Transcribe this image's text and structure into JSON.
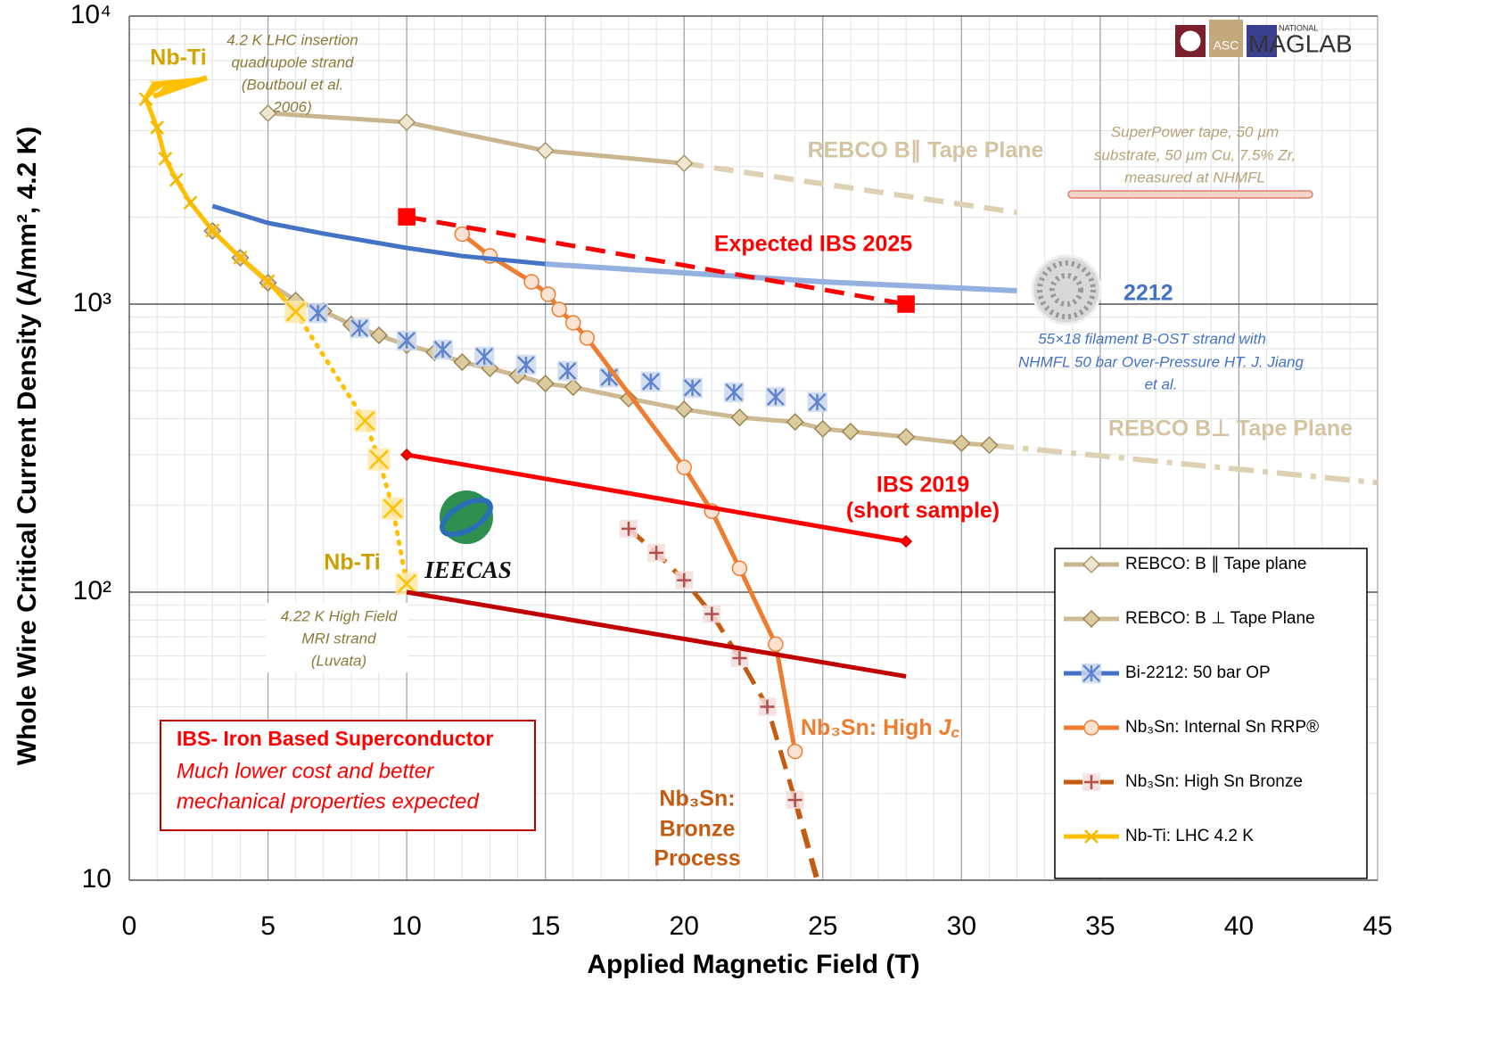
{
  "chart_data": {
    "type": "line",
    "xlabel": "Applied Magnetic Field (T)",
    "ylabel": "Whole Wire Critical Current Density (A/mm², 4.2 K)",
    "xlim": [
      0,
      45
    ],
    "xticks": [
      0,
      5,
      10,
      15,
      20,
      25,
      30,
      35,
      40,
      45
    ],
    "ylim": [
      10,
      10000
    ],
    "yscale": "log",
    "yticks": [
      10,
      {
        "value": 100,
        "label": "10²"
      },
      {
        "value": 1000,
        "label": "10³"
      },
      {
        "value": 10000,
        "label": "10⁴"
      }
    ],
    "grid": true,
    "minor_grid": true,
    "legend": "lower right",
    "series": [
      {
        "name": "REBCO: B ∥ Tape plane",
        "color": "#c9b68f",
        "marker": "diamond",
        "marker_fill": "#efe6d2",
        "marker_stroke": "#a8956b",
        "marker_size": 9,
        "x": [
          5,
          10,
          15,
          20
        ],
        "values": [
          4600,
          4280,
          3410,
          3080
        ],
        "extension": {
          "x": [
            20,
            32
          ],
          "values": [
            3080,
            2080
          ],
          "dash": "dashed",
          "color": "#ddd0b3"
        }
      },
      {
        "name": "REBCO: B ⊥ Tape Plane",
        "color": "#cdb992",
        "marker": "diamond",
        "marker_fill": "#dccb9f",
        "marker_stroke": "#9c8555",
        "marker_size": 9,
        "x": [
          3,
          4,
          5,
          6,
          7,
          8,
          9,
          10,
          11,
          12,
          13,
          14,
          15,
          16,
          18,
          20,
          22,
          24,
          25,
          26,
          28,
          30,
          31
        ],
        "values": [
          1795,
          1449,
          1186,
          1029,
          945,
          849,
          779,
          720,
          680,
          629,
          598,
          565,
          530,
          515,
          470,
          431,
          404,
          390,
          369,
          361,
          346,
          329,
          324
        ],
        "extension": {
          "x": [
            31,
            45
          ],
          "values": [
            324,
            240
          ],
          "dash": "dashdot",
          "color": "#ddd0b3"
        }
      },
      {
        "name": "Bi-2212: 50 bar OP",
        "color": "#4472c4",
        "marker": "asterisk",
        "marker_stroke": "#5f83cc",
        "marker_bg": "#cdd8ee",
        "marker_size": 9,
        "line": false,
        "x": [
          6.8,
          8.3,
          10,
          11.3,
          12.8,
          14.3,
          15.8,
          17.3,
          18.8,
          20.3,
          21.8,
          23.3,
          24.8
        ],
        "values": [
          931,
          825,
          747,
          695,
          657,
          616,
          586,
          557,
          538,
          512,
          494,
          476,
          457
        ]
      },
      {
        "name": "Nb₃Sn: Internal Sn RRP®",
        "color": "#ed7d31",
        "marker": "circle",
        "marker_fill": "#fbe3d3",
        "marker_stroke": "#ed7d31",
        "marker_size": 8,
        "x": [
          12,
          13,
          14.5,
          15.1,
          15.5,
          16,
          16.5,
          20,
          21,
          22,
          23.3,
          24
        ],
        "values": [
          1750,
          1469,
          1195,
          1082,
          958,
          861,
          763,
          271,
          191,
          121,
          66,
          28
        ]
      },
      {
        "name": "Nb₃Sn: High Sn Bronze",
        "color": "#c55a11",
        "marker": "plus",
        "marker_stroke": "#b0504a",
        "marker_bg": "#f3dede",
        "marker_size": 8,
        "dash": "dashed",
        "x": [
          18,
          19,
          20,
          21,
          22,
          23,
          24
        ],
        "values": [
          166,
          137,
          110,
          84,
          59,
          40,
          19
        ],
        "extension": {
          "x": [
            24,
            24.8
          ],
          "values": [
            19,
            10
          ],
          "dash": "dashed",
          "color": "#c55a11"
        }
      },
      {
        "name": "Nb-Ti: LHC 4.2 K",
        "color": "#ffc000",
        "marker": "x",
        "marker_stroke": "#f5b800",
        "marker_size": 7,
        "x": [
          0.6,
          1,
          1.3,
          1.7,
          2.2,
          3,
          4,
          5,
          6
        ],
        "values": [
          5150,
          4100,
          3200,
          2700,
          2250,
          1800,
          1450,
          1200,
          940
        ]
      },
      {
        "color": "#4472c4",
        "x": [
          3,
          5,
          7,
          10,
          12,
          15
        ],
        "values": [
          2190,
          1913,
          1757,
          1567,
          1469,
          1378
        ],
        "extension": {
          "x": [
            15,
            20,
            25,
            32
          ],
          "values": [
            1378,
            1283,
            1195,
            1113
          ],
          "color": "#94b0e0"
        }
      },
      {
        "color": "#ffc000",
        "marker": "x",
        "marker_stroke": "#ffc000",
        "marker_bg": "#fde9a9",
        "marker_size": 10,
        "dash": "dotted",
        "x": [
          6,
          8.5,
          9,
          9.5,
          10
        ],
        "values": [
          940,
          393,
          289,
          195,
          107
        ]
      },
      {
        "color": "#ff0000",
        "marker": "square",
        "marker_fill": "#ff0000",
        "marker_stroke": "#ff0000",
        "marker_size": 9,
        "dash": "dashed",
        "x": [
          10,
          28
        ],
        "values": [
          2010,
          1000
        ]
      },
      {
        "color": "#ff0000",
        "marker": "diamond",
        "marker_fill": "#ff0000",
        "marker_stroke": "#cc0000",
        "marker_size": 6,
        "x": [
          10,
          28
        ],
        "values": [
          300,
          150
        ]
      },
      {
        "color": "#c00000",
        "x": [
          10,
          28
        ],
        "values": [
          100,
          51
        ]
      }
    ],
    "annotations": {
      "nbti_lhc": "Nb-Ti",
      "lhc_note": [
        "4.2 K LHC insertion",
        "quadrupole strand",
        "(Boutboul et al.",
        "2006)"
      ],
      "rebco_par": "REBCO B∥ Tape Plane",
      "superpower_note": [
        "SuperPower tape, 50 µm",
        "substrate, 50 µm Cu, 7.5% Zr,",
        "measured at NHMFL"
      ],
      "ibs_2025": "Expected IBS 2025",
      "bi2212": "2212",
      "bi2212_note": [
        "55×18 filament B-OST strand with",
        "NHMFL 50 bar Over-Pressure HT. J. Jiang",
        "et al."
      ],
      "rebco_perp": "REBCO B⊥ Tape Plane",
      "ibs_2019": [
        "IBS 2019",
        "(short sample)"
      ],
      "nbti_mri": "Nb-Ti",
      "ieecas": "IEECAS",
      "mri_note": [
        "4.22 K High Field",
        "MRI strand",
        "(Luvata)"
      ],
      "nb3sn_high": [
        "Nb₃Sn: High ",
        "J",
        "c"
      ],
      "nb3sn_bronze": [
        "Nb₃Sn:",
        "Bronze",
        "Process"
      ],
      "ibs_box": [
        "IBS- Iron Based Superconductor",
        "Much lower cost and better",
        "mechanical properties expected"
      ]
    },
    "logo": {
      "asc": "ASC",
      "national": "NATIONAL",
      "maglab": "MAGLAB"
    }
  }
}
